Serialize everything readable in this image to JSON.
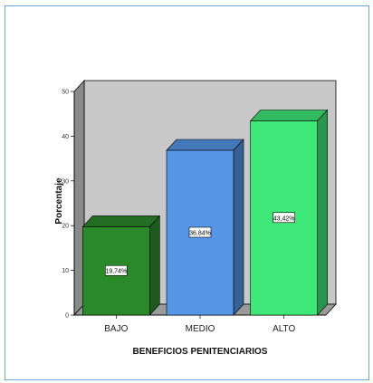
{
  "chart_data": {
    "type": "bar",
    "categories": [
      "BAJO",
      "MEDIO",
      "ALTO"
    ],
    "values": [
      19.74,
      36.84,
      43.42
    ],
    "data_labels": [
      "19,74%",
      "36,84%",
      "43,42%"
    ],
    "colors": [
      "#2a8a2a",
      "#5596e6",
      "#3ee878"
    ],
    "xlabel": "BENEFICIOS PENITENCIARIOS",
    "ylabel": "Porcentaje",
    "ylim": [
      0,
      50
    ],
    "yticks": [
      0,
      10,
      20,
      30,
      40,
      50
    ],
    "grid": false,
    "style": "3d"
  }
}
